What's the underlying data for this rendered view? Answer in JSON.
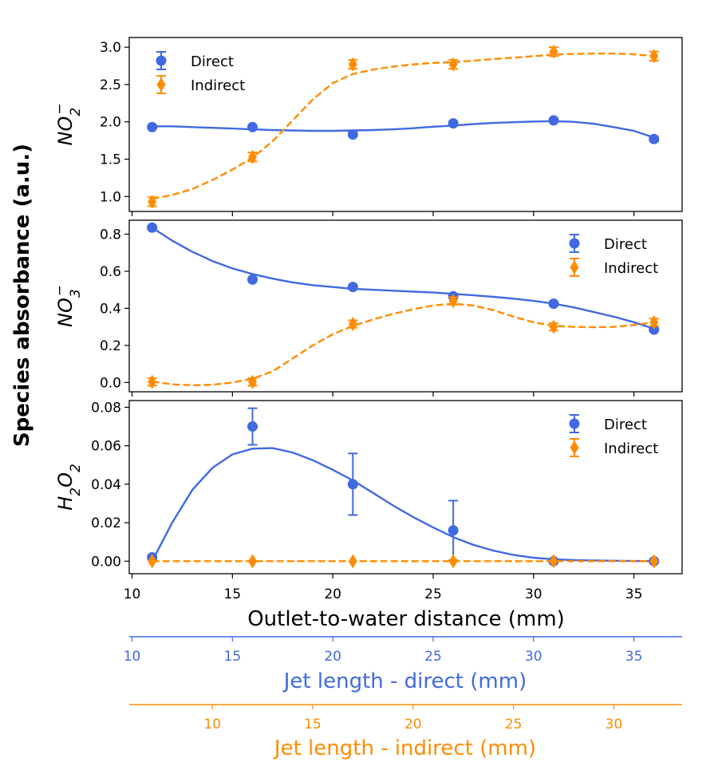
{
  "figure": {
    "ylabel": "Species absorbance (a.u.)",
    "xlabel": "Outlet-to-water distance (mm)",
    "legend_direct": "Direct",
    "legend_indirect": "Indirect",
    "colors": {
      "direct": "#4169E1",
      "indirect": "#FF8C00"
    }
  },
  "chart_data": [
    {
      "type": "scatter",
      "panel": "top",
      "ylabel": "NO2-",
      "ylim": [
        0.8,
        3.13
      ],
      "yticks": [
        1.0,
        1.5,
        2.0,
        2.5,
        3.0
      ],
      "ytick_labels": [
        "1.0",
        "1.5",
        "2.0",
        "2.5",
        "3.0"
      ],
      "legend_position": "top-left",
      "series": [
        {
          "name": "Direct",
          "marker": "circle",
          "line": "solid",
          "x": [
            11,
            16,
            21,
            26,
            31,
            36
          ],
          "values": [
            1.93,
            1.93,
            1.83,
            1.98,
            2.02,
            1.77
          ],
          "errors": [
            0.02,
            0.02,
            0.02,
            0.02,
            0.02,
            0.03
          ],
          "fit_x": [
            11,
            12,
            13,
            14,
            15,
            16,
            17,
            18,
            19,
            20,
            21,
            22,
            23,
            24,
            25,
            26,
            27,
            28,
            29,
            30,
            31,
            32,
            33,
            34,
            35,
            36
          ],
          "fit": [
            1.94,
            1.94,
            1.93,
            1.92,
            1.91,
            1.9,
            1.89,
            1.885,
            1.88,
            1.88,
            1.885,
            1.89,
            1.9,
            1.915,
            1.935,
            1.95,
            1.97,
            1.985,
            1.995,
            2.005,
            2.01,
            2.0,
            1.975,
            1.93,
            1.88,
            1.79
          ]
        },
        {
          "name": "Indirect",
          "marker": "diamond",
          "line": "dashed",
          "x": [
            11,
            16,
            21,
            26,
            31,
            36
          ],
          "values": [
            0.93,
            1.53,
            2.77,
            2.77,
            2.94,
            2.88
          ],
          "errors": [
            0.06,
            0.06,
            0.06,
            0.06,
            0.06,
            0.06
          ],
          "fit_x": [
            11,
            12,
            13,
            14,
            15,
            16,
            17,
            18,
            19,
            20,
            21,
            22,
            23,
            24,
            25,
            26,
            27,
            28,
            29,
            30,
            31,
            32,
            33,
            34,
            35,
            36
          ],
          "fit": [
            0.97,
            1.02,
            1.1,
            1.22,
            1.36,
            1.52,
            1.74,
            2.02,
            2.3,
            2.52,
            2.64,
            2.7,
            2.74,
            2.77,
            2.79,
            2.8,
            2.82,
            2.84,
            2.86,
            2.88,
            2.9,
            2.91,
            2.915,
            2.915,
            2.905,
            2.88
          ]
        }
      ]
    },
    {
      "type": "scatter",
      "panel": "middle",
      "ylabel": "NO3-",
      "ylim": [
        -0.05,
        0.875
      ],
      "yticks": [
        0.0,
        0.2,
        0.4,
        0.6,
        0.8
      ],
      "ytick_labels": [
        "0.0",
        "0.2",
        "0.4",
        "0.6",
        "0.8"
      ],
      "legend_position": "top-right",
      "series": [
        {
          "name": "Direct",
          "marker": "circle",
          "line": "solid",
          "x": [
            11,
            16,
            21,
            26,
            31,
            36
          ],
          "values": [
            0.835,
            0.555,
            0.515,
            0.465,
            0.425,
            0.285
          ],
          "errors": [
            0.01,
            0.01,
            0.01,
            0.01,
            0.01,
            0.01
          ],
          "fit_x": [
            11,
            12,
            13,
            14,
            15,
            16,
            17,
            18,
            19,
            20,
            21,
            22,
            23,
            24,
            25,
            26,
            27,
            28,
            29,
            30,
            31,
            32,
            33,
            34,
            35,
            36
          ],
          "fit": [
            0.835,
            0.765,
            0.705,
            0.655,
            0.615,
            0.585,
            0.56,
            0.54,
            0.525,
            0.515,
            0.505,
            0.5,
            0.495,
            0.49,
            0.485,
            0.478,
            0.47,
            0.462,
            0.452,
            0.44,
            0.425,
            0.405,
            0.38,
            0.355,
            0.325,
            0.29
          ]
        },
        {
          "name": "Indirect",
          "marker": "diamond",
          "line": "dashed",
          "x": [
            11,
            16,
            21,
            26,
            31,
            36
          ],
          "values": [
            0.003,
            0.003,
            0.315,
            0.44,
            0.3,
            0.325
          ],
          "errors": [
            0.02,
            0.02,
            0.02,
            0.02,
            0.02,
            0.02
          ],
          "fit_x": [
            11,
            12,
            13,
            14,
            15,
            16,
            17,
            18,
            19,
            20,
            21,
            22,
            23,
            24,
            25,
            26,
            27,
            28,
            29,
            30,
            31,
            32,
            33,
            34,
            35,
            36
          ],
          "fit": [
            0.005,
            -0.01,
            -0.015,
            -0.012,
            0.0,
            0.02,
            0.06,
            0.13,
            0.2,
            0.26,
            0.305,
            0.34,
            0.37,
            0.395,
            0.415,
            0.425,
            0.415,
            0.39,
            0.355,
            0.325,
            0.305,
            0.3,
            0.298,
            0.3,
            0.31,
            0.325
          ]
        }
      ]
    },
    {
      "type": "scatter",
      "panel": "bottom",
      "ylabel": "H2O2",
      "ylim": [
        -0.0065,
        0.0835
      ],
      "yticks": [
        0.0,
        0.02,
        0.04,
        0.06,
        0.08
      ],
      "ytick_labels": [
        "0.00",
        "0.02",
        "0.04",
        "0.06",
        "0.08"
      ],
      "legend_position": "top-right",
      "series": [
        {
          "name": "Direct",
          "marker": "circle",
          "line": "solid",
          "x": [
            11,
            16,
            21,
            26,
            31,
            36
          ],
          "values": [
            0.002,
            0.07,
            0.04,
            0.016,
            0.0,
            0.0
          ],
          "errors": [
            0.001,
            0.0095,
            0.016,
            0.0155,
            0.0005,
            0.0005
          ],
          "fit_x": [
            11,
            12,
            13,
            14,
            15,
            16,
            17,
            18,
            19,
            20,
            21,
            22,
            23,
            24,
            25,
            26,
            27,
            28,
            29,
            30,
            31,
            32,
            33,
            34,
            35,
            36
          ],
          "fit": [
            0.0,
            0.02,
            0.037,
            0.0485,
            0.0555,
            0.0585,
            0.0588,
            0.0565,
            0.0525,
            0.0475,
            0.042,
            0.0355,
            0.029,
            0.023,
            0.0175,
            0.0125,
            0.0085,
            0.0055,
            0.0033,
            0.0018,
            0.001,
            0.0006,
            0.0004,
            0.0002,
            0.0001,
            0.0
          ]
        },
        {
          "name": "Indirect",
          "marker": "diamond",
          "line": "dashed",
          "x": [
            11,
            16,
            21,
            26,
            31,
            36
          ],
          "values": [
            0.0,
            0.0,
            0.0,
            0.0,
            0.0,
            0.0
          ],
          "errors": [
            0.0003,
            0.0003,
            0.0003,
            0.0003,
            0.0003,
            0.0003
          ],
          "fit_x": [
            11,
            36
          ],
          "fit": [
            0.0,
            0.0
          ]
        }
      ]
    },
    {
      "type": "axis",
      "panel": "secondary-direct",
      "xlabel": "Jet length - direct (mm)",
      "xlim": [
        9.86,
        37.4
      ],
      "ticks": [
        10,
        15,
        20,
        25,
        30,
        35
      ],
      "tick_labels": [
        "10",
        "15",
        "20",
        "25",
        "30",
        "35"
      ],
      "color": "#4169E1"
    },
    {
      "type": "axis",
      "panel": "secondary-indirect",
      "xlabel": "Jet length - indirect (mm)",
      "xlim": [
        5.86,
        33.4
      ],
      "ticks": [
        10,
        15,
        20,
        25,
        30
      ],
      "tick_labels": [
        "10",
        "15",
        "20",
        "25",
        "30"
      ],
      "color": "#FF8C00"
    }
  ],
  "main_xaxis": {
    "xlim": [
      9.86,
      37.4
    ],
    "ticks": [
      10,
      15,
      20,
      25,
      30,
      35
    ],
    "tick_labels": [
      "10",
      "15",
      "20",
      "25",
      "30",
      "35"
    ]
  }
}
